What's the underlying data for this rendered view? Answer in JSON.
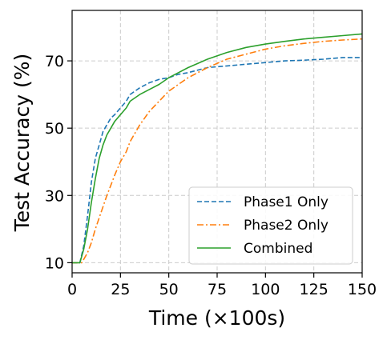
{
  "chart_data": {
    "type": "line",
    "title": "",
    "xlabel": "Time (×100s)",
    "ylabel": "Test Accuracy (%)",
    "xlim": [
      0,
      150
    ],
    "ylim": [
      7,
      85
    ],
    "xticks": [
      0,
      25,
      50,
      75,
      100,
      125,
      150
    ],
    "xtick_labels": [
      "0",
      "25",
      "50",
      "75",
      "100",
      "125",
      "150"
    ],
    "yticks": [
      10,
      30,
      50,
      70
    ],
    "ytick_labels": [
      "10",
      "30",
      "50",
      "70"
    ],
    "grid": true,
    "legend_position": "lower-right",
    "series": [
      {
        "name": "Phase1 Only",
        "color": "#1f77b4",
        "dash": "dashed",
        "x": [
          0,
          4,
          6,
          8,
          10,
          12,
          14,
          16,
          18,
          20,
          22,
          25,
          28,
          30,
          35,
          40,
          45,
          50,
          55,
          60,
          70,
          80,
          90,
          100,
          110,
          120,
          130,
          140,
          150
        ],
        "y": [
          10,
          10,
          15,
          24,
          34,
          41,
          45,
          49,
          51,
          53,
          54,
          56,
          58,
          60,
          62,
          63.5,
          64.5,
          65,
          66,
          66.5,
          68,
          68.5,
          69,
          69.5,
          70,
          70.2,
          70.5,
          71,
          71
        ]
      },
      {
        "name": "Phase2 Only",
        "color": "#ff7f0e",
        "dash": "dashdot",
        "x": [
          0,
          5,
          6,
          8,
          10,
          12,
          15,
          18,
          20,
          22,
          25,
          28,
          30,
          35,
          40,
          45,
          50,
          55,
          60,
          70,
          80,
          90,
          100,
          110,
          120,
          130,
          140,
          150
        ],
        "y": [
          10,
          10,
          11,
          13,
          16,
          20,
          25,
          30,
          33,
          36,
          40,
          43,
          46,
          51,
          55,
          58,
          61,
          63,
          65,
          68,
          70.5,
          72,
          73.5,
          74.5,
          75.2,
          75.8,
          76.2,
          76.5
        ]
      },
      {
        "name": "Combined",
        "color": "#2ca02c",
        "dash": "solid",
        "x": [
          0,
          4,
          6,
          8,
          10,
          12,
          14,
          16,
          18,
          20,
          22,
          25,
          28,
          30,
          35,
          40,
          45,
          50,
          55,
          60,
          70,
          80,
          90,
          100,
          110,
          120,
          130,
          140,
          150
        ],
        "y": [
          10,
          10,
          14,
          20,
          28,
          35,
          41,
          45,
          48,
          50,
          52,
          54,
          56,
          58,
          60,
          61.5,
          63,
          65,
          66.5,
          68,
          70.5,
          72.5,
          74,
          75,
          75.8,
          76.5,
          77,
          77.5,
          78
        ]
      }
    ]
  }
}
